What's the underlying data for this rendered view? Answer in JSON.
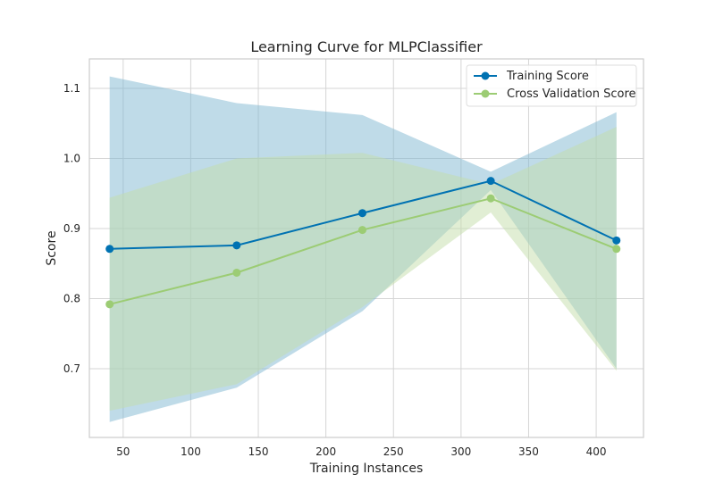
{
  "chart_data": {
    "type": "line",
    "title": "Learning Curve for MLPClassifier",
    "xlabel": "Training Instances",
    "ylabel": "Score",
    "xlim": [
      25,
      435
    ],
    "ylim": [
      0.602,
      1.142
    ],
    "xticks": [
      50,
      100,
      150,
      200,
      250,
      300,
      350,
      400
    ],
    "yticks": [
      0.7,
      0.8,
      0.9,
      1.0,
      1.1
    ],
    "ytick_labels": [
      "0.7",
      "0.8",
      "0.9",
      "1.0",
      "1.1"
    ],
    "grid": true,
    "legend_position": "top-right",
    "x": [
      40,
      134,
      227,
      322,
      415
    ],
    "series": [
      {
        "name": "Training Score",
        "color": "#0072b2",
        "values": [
          0.871,
          0.876,
          0.922,
          0.968,
          0.883
        ],
        "band_upper": [
          1.117,
          1.079,
          1.062,
          0.981,
          1.066
        ],
        "band_lower": [
          0.624,
          0.673,
          0.782,
          0.955,
          0.7
        ]
      },
      {
        "name": "Cross Validation Score",
        "color": "#9ccc74",
        "values": [
          0.792,
          0.837,
          0.898,
          0.943,
          0.871
        ],
        "band_upper": [
          0.944,
          1.0,
          1.008,
          0.963,
          1.045
        ],
        "band_lower": [
          0.64,
          0.678,
          0.788,
          0.923,
          0.697
        ]
      }
    ]
  }
}
